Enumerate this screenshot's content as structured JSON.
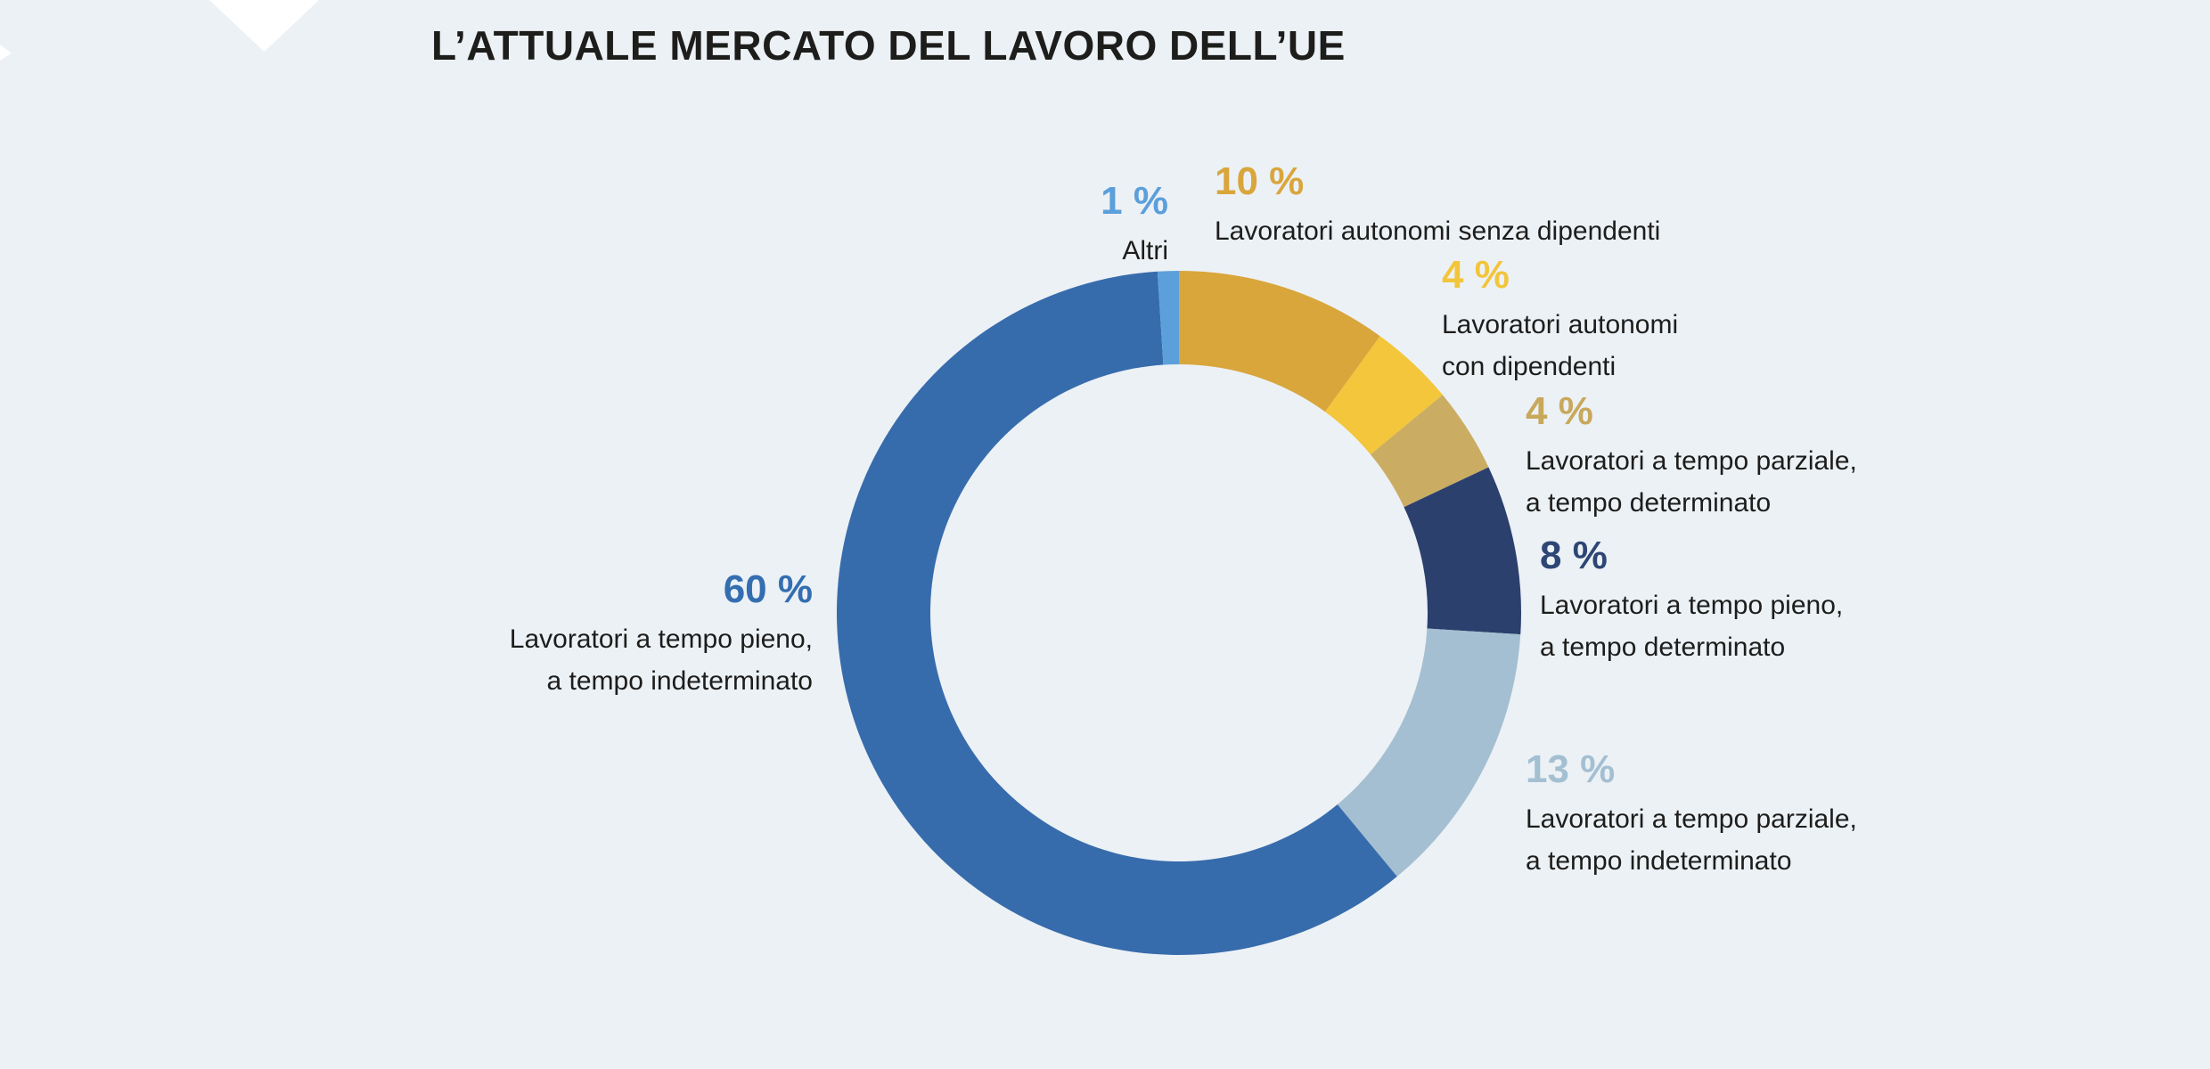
{
  "title": "L’ATTUALE MERCATO DEL LAVORO DELL’UE",
  "background_color": "#ECF1F6",
  "text_color": "#1D1D1B",
  "callouts": {
    "ft_perm": {
      "pct": "60 %",
      "color": "#346EB0",
      "line1": "Lavoratori a tempo pieno,",
      "line2": "a tempo indeterminato"
    },
    "others": {
      "pct": "1 %",
      "color": "#5B9FDB",
      "line1": "Altri"
    },
    "self_no_emp": {
      "pct": "10 %",
      "color": "#D9A63C",
      "line1": "Lavoratori autonomi senza dipendenti"
    },
    "self_with_emp": {
      "pct": "4 %",
      "color": "#F2C53B",
      "line1": "Lavoratori autonomi",
      "line2": "con dipendenti"
    },
    "pt_fixed": {
      "pct": "4 %",
      "color": "#C8A85C",
      "line1": "Lavoratori a tempo parziale,",
      "line2": "a tempo determinato"
    },
    "ft_fixed": {
      "pct": "8 %",
      "color": "#2E4674",
      "line1": "Lavoratori a tempo pieno,",
      "line2": "a tempo determinato"
    },
    "pt_perm": {
      "pct": "13 %",
      "color": "#A4BFD2",
      "line1": "Lavoratori a tempo parziale,",
      "line2": "a tempo indeterminato"
    }
  },
  "chart_data": {
    "type": "pie",
    "subtype": "donut",
    "title": "L’ATTUALE MERCATO DEL LAVORO DELL’UE",
    "unit": "%",
    "direction": "clockwise",
    "start_angle_deg": 0,
    "slices": [
      {
        "label": "Lavoratori autonomi senza dipendenti",
        "value": 10,
        "color": "#D9A63C"
      },
      {
        "label": "Lavoratori autonomi con dipendenti",
        "value": 4,
        "color": "#F3C63B"
      },
      {
        "label": "Lavoratori a tempo parziale, a tempo determinato",
        "value": 4,
        "color": "#CAAD62"
      },
      {
        "label": "Lavoratori a tempo pieno, a tempo determinato",
        "value": 8,
        "color": "#2C406E"
      },
      {
        "label": "Lavoratori a tempo parziale, a tempo indeterminato",
        "value": 13,
        "color": "#A4BFD1"
      },
      {
        "label": "Lavoratori a tempo pieno, a tempo indeterminato",
        "value": 60,
        "color": "#376CAC"
      },
      {
        "label": "Altri",
        "value": 1,
        "color": "#5CA0DB"
      }
    ]
  }
}
